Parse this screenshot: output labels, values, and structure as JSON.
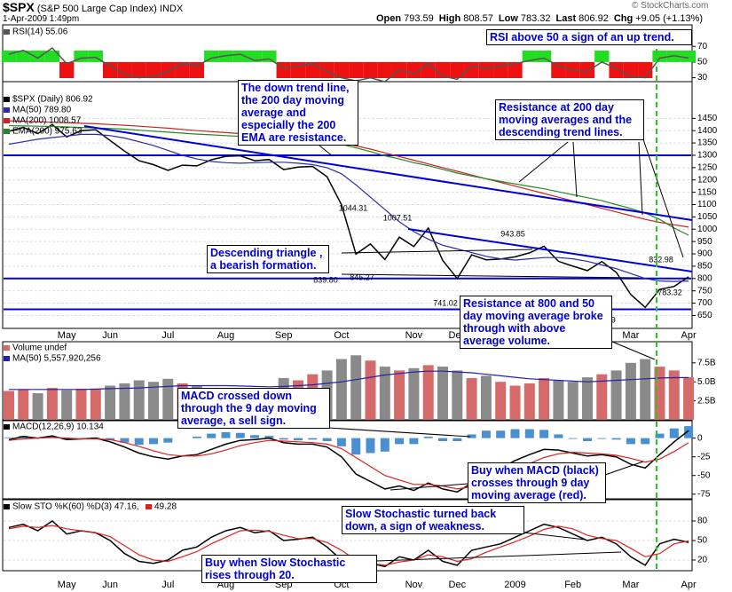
{
  "header": {
    "symbol": "$SPX",
    "name": "(S&P 500 Large Cap Index)",
    "exchange": "INDX",
    "date": "1-Apr-2009 1:49pm",
    "quote": [
      {
        "label": "Open",
        "value": "793.59"
      },
      {
        "label": "High",
        "value": "808.57"
      },
      {
        "label": "Low",
        "value": "783.32"
      },
      {
        "label": "Last",
        "value": "806.92"
      },
      {
        "label": "Chg",
        "value": "+9.05 (+1.13%)"
      }
    ],
    "copyright": "© StockCharts.com"
  },
  "annotations": [
    "RSI above 50 a sign of an up trend.",
    "The down trend line, the 200 day moving average and especially the 200 EMA are resistance.",
    "Resistance at 200 day moving averages and the descending trend lines.",
    "Descending triangle , a bearish formation.",
    "Resistance at 800 and 50 day moving average broke through with above average volume.",
    "MACD crossed down through the 9 day moving average, a sell sign.",
    "Buy when MACD (black) crosses through 9 day moving average (red).",
    "Slow Stochastic turned back down, a sign of weakness.",
    "Buy when Slow Stochastic rises through 20."
  ],
  "chart_data": [
    {
      "type": "line",
      "above_color": "#22dd22",
      "below_color": "#ee1111",
      "ylim": [
        25,
        85
      ],
      "yticks": [
        30,
        50,
        70
      ],
      "series": [
        {
          "name": "RSI(14) 55.06",
          "color": "#555555",
          "values": [
            60,
            65,
            55,
            68,
            48,
            55,
            56,
            45,
            35,
            30,
            32,
            38,
            48,
            45,
            55,
            58,
            60,
            52,
            54,
            42,
            45,
            48,
            38,
            30,
            26,
            30,
            25,
            40,
            35,
            48,
            32,
            28,
            45,
            42,
            45,
            48,
            52,
            55,
            45,
            40,
            38,
            50,
            42,
            32,
            30,
            55,
            58,
            55.06
          ]
        }
      ]
    },
    {
      "type": "line",
      "ylim": [
        630,
        1480
      ],
      "yticks": [
        650,
        700,
        750,
        800,
        850,
        900,
        950,
        1000,
        1050,
        1100,
        1150,
        1200,
        1250,
        1300,
        1350,
        1400,
        1450
      ],
      "grid": true,
      "levels": [
        1300,
        800,
        675
      ],
      "level_color": "#0000dd",
      "categories": [
        null,
        null,
        null,
        null,
        "May",
        null,
        null,
        "Jun",
        null,
        null,
        null,
        "Jul",
        null,
        null,
        null,
        "Aug",
        null,
        null,
        null,
        "Sep",
        null,
        null,
        null,
        "Oct",
        null,
        null,
        null,
        null,
        "Nov",
        null,
        null,
        "Dec",
        null,
        null,
        null,
        "2009",
        null,
        null,
        null,
        "Feb",
        null,
        null,
        null,
        "Mar",
        null,
        null,
        null,
        "Apr"
      ],
      "point_labels": [
        "1044.31",
        "1007.51",
        "943.85",
        "839.80",
        "845.27",
        "741.02",
        "666.79",
        "832.98",
        "783.32"
      ],
      "series": [
        {
          "name": "$SPX (Daily) 806.92",
          "color": "#000000",
          "values": [
            1397,
            1413,
            1388,
            1425,
            1375,
            1400,
            1404,
            1360,
            1317,
            1278,
            1262,
            1239,
            1260,
            1257,
            1282,
            1296,
            1298,
            1278,
            1283,
            1242,
            1252,
            1255,
            1213,
            1099,
            899,
            940,
            877,
            968,
            930,
            1005,
            873,
            800,
            896,
            876,
            879,
            888,
            904,
            931,
            870,
            850,
            832,
            869,
            825,
            735,
            683,
            756,
            768,
            806.92
          ]
        },
        {
          "name": "MA(50) 789.80",
          "color": "#2a2aaa",
          "values": [
            1345,
            1355,
            1365,
            1372,
            1378,
            1385,
            1385,
            1380,
            1370,
            1355,
            1340,
            1320,
            1300,
            1285,
            1275,
            1270,
            1268,
            1270,
            1272,
            1272,
            1268,
            1262,
            1250,
            1225,
            1180,
            1130,
            1080,
            1030,
            990,
            960,
            935,
            920,
            905,
            890,
            880,
            875,
            880,
            885,
            885,
            880,
            870,
            855,
            840,
            820,
            800,
            790,
            788,
            789.8
          ]
        },
        {
          "name": "MA(200) 1008.57",
          "color": "#cc2222",
          "values": [
            1440,
            1438,
            1436,
            1434,
            1432,
            1430,
            1428,
            1425,
            1422,
            1418,
            1414,
            1410,
            1405,
            1400,
            1396,
            1392,
            1388,
            1384,
            1380,
            1375,
            1370,
            1365,
            1358,
            1350,
            1338,
            1325,
            1310,
            1295,
            1280,
            1265,
            1250,
            1235,
            1220,
            1205,
            1190,
            1175,
            1160,
            1145,
            1130,
            1115,
            1100,
            1085,
            1070,
            1055,
            1040,
            1028,
            1018,
            1008.57
          ]
        },
        {
          "name": "EMA(200) 975.63",
          "color": "#228822",
          "values": [
            1420,
            1419,
            1418,
            1417,
            1415,
            1413,
            1411,
            1409,
            1406,
            1402,
            1398,
            1394,
            1390,
            1386,
            1383,
            1380,
            1377,
            1374,
            1371,
            1367,
            1363,
            1359,
            1353,
            1345,
            1330,
            1315,
            1298,
            1285,
            1270,
            1258,
            1243,
            1228,
            1216,
            1205,
            1194,
            1184,
            1174,
            1164,
            1152,
            1140,
            1128,
            1116,
            1100,
            1084,
            1066,
            1040,
            1005,
            975.63
          ]
        }
      ]
    },
    {
      "type": "bar",
      "up_color": "#d46a6a",
      "down_color": "#8a8a8a",
      "ylim": [
        0,
        9000000000
      ],
      "yticks": [
        {
          "value": 2500000000,
          "label": "2.5B"
        },
        {
          "value": 5000000000,
          "label": "5.0B"
        },
        {
          "value": 7500000000,
          "label": "7.5B"
        }
      ],
      "series": [
        {
          "name": "Volume undef",
          "type": "bar",
          "color": "#d46a6a",
          "values": [
            3800000000,
            4000000000,
            3500000000,
            4200000000,
            3900000000,
            4100000000,
            4000000000,
            4500000000,
            4800000000,
            5200000000,
            5000000000,
            5400000000,
            4800000000,
            4500000000,
            4200000000,
            3900000000,
            3600000000,
            4000000000,
            4200000000,
            5500000000,
            5200000000,
            6000000000,
            6500000000,
            8000000000,
            8500000000,
            7800000000,
            7000000000,
            6500000000,
            6800000000,
            7200000000,
            7000000000,
            6500000000,
            5500000000,
            5800000000,
            5000000000,
            4500000000,
            4800000000,
            5500000000,
            5200000000,
            5000000000,
            5600000000,
            6000000000,
            6500000000,
            7500000000,
            8000000000,
            7000000000,
            6500000000,
            5600000000
          ]
        },
        {
          "name": "MA(50) 5,557,920,256",
          "type": "line",
          "color": "#2222aa",
          "values": [
            4000000000,
            4000000000,
            4000000000,
            4000000000,
            4000000000,
            4000000000,
            4050000000,
            4100000000,
            4150000000,
            4200000000,
            4300000000,
            4400000000,
            4500000000,
            4500000000,
            4500000000,
            4500000000,
            4450000000,
            4400000000,
            4350000000,
            4400000000,
            4500000000,
            4600000000,
            4800000000,
            5000000000,
            5300000000,
            5600000000,
            5900000000,
            6100000000,
            6300000000,
            6400000000,
            6400000000,
            6300000000,
            6200000000,
            6000000000,
            5800000000,
            5600000000,
            5400000000,
            5300000000,
            5200000000,
            5100000000,
            5000000000,
            5100000000,
            5200000000,
            5300000000,
            5400000000,
            5500000000,
            5550000000,
            5557920256
          ]
        }
      ]
    },
    {
      "type": "line",
      "histogram_color": "#4a90d0",
      "ylim": [
        -80,
        15
      ],
      "yticks": [
        0,
        -25,
        -50,
        -75
      ],
      "series": [
        {
          "name": "MACD(12,26,9) 10.134",
          "color": "#000000",
          "values": [
            -2,
            2,
            0,
            3,
            -2,
            -1,
            0,
            -5,
            -12,
            -20,
            -25,
            -28,
            -24,
            -22,
            -15,
            -8,
            -3,
            -2,
            0,
            -6,
            -8,
            -8,
            -12,
            -25,
            -48,
            -58,
            -68,
            -64,
            -70,
            -60,
            -68,
            -72,
            -60,
            -48,
            -40,
            -30,
            -22,
            -15,
            -16,
            -20,
            -24,
            -22,
            -25,
            -35,
            -40,
            -22,
            -5,
            10.134
          ]
        },
        {
          "name": "Signal",
          "color": "#dd2222",
          "values": [
            -3,
            -1,
            0,
            1,
            0,
            -1,
            -1,
            -2,
            -6,
            -11,
            -17,
            -22,
            -24,
            -24,
            -21,
            -16,
            -10,
            -6,
            -3,
            -4,
            -5,
            -6,
            -8,
            -14,
            -26,
            -38,
            -50,
            -56,
            -62,
            -62,
            -64,
            -68,
            -65,
            -58,
            -50,
            -42,
            -34,
            -26,
            -21,
            -19,
            -20,
            -21,
            -23,
            -27,
            -32,
            -28,
            -18,
            -6
          ]
        }
      ]
    },
    {
      "type": "line",
      "ylim": [
        5,
        95
      ],
      "yticks": [
        20,
        50,
        80
      ],
      "grid": true,
      "categories": [
        null,
        null,
        null,
        null,
        "May",
        null,
        null,
        "Jun",
        null,
        null,
        null,
        "Jul",
        null,
        null,
        null,
        "Aug",
        null,
        null,
        null,
        "Sep",
        null,
        null,
        null,
        "Oct",
        null,
        null,
        null,
        null,
        "Nov",
        null,
        null,
        "Dec",
        null,
        null,
        null,
        "2009",
        null,
        null,
        null,
        "Feb",
        null,
        null,
        null,
        "Mar",
        null,
        null,
        null,
        "Apr"
      ],
      "series": [
        {
          "name": "Slow STO %K(60) %D(3) 47.16,",
          "color": "#000000",
          "values": [
            70,
            75,
            65,
            80,
            60,
            65,
            62,
            50,
            30,
            18,
            15,
            20,
            35,
            40,
            55,
            65,
            70,
            62,
            65,
            50,
            52,
            55,
            40,
            20,
            8,
            15,
            10,
            25,
            20,
            35,
            18,
            12,
            35,
            40,
            45,
            55,
            65,
            75,
            70,
            60,
            50,
            55,
            45,
            25,
            12,
            45,
            52,
            47.16
          ]
        },
        {
          "name": "49.28",
          "color": "#dd2222",
          "values": [
            68,
            72,
            70,
            73,
            68,
            65,
            62,
            56,
            42,
            28,
            20,
            18,
            25,
            33,
            45,
            55,
            65,
            66,
            64,
            58,
            53,
            53,
            47,
            35,
            20,
            15,
            12,
            17,
            20,
            28,
            25,
            18,
            22,
            32,
            40,
            48,
            57,
            67,
            72,
            68,
            58,
            53,
            50,
            38,
            25,
            30,
            45,
            49.28
          ]
        }
      ]
    }
  ]
}
